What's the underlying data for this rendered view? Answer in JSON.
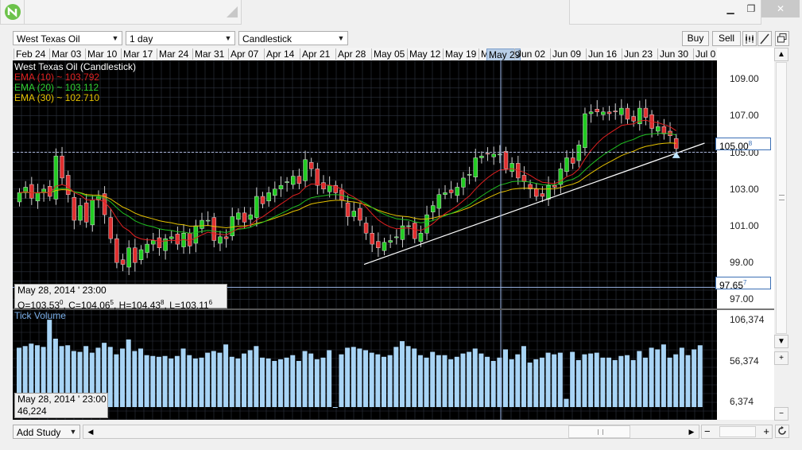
{
  "toolbar": {
    "symbol": "West Texas Oil",
    "interval": "1 day",
    "chart_type": "Candlestick",
    "buy_label": "Buy",
    "sell_label": "Sell"
  },
  "window": {
    "minimize": "▁",
    "restore": "❐",
    "close": "✕"
  },
  "x_axis_labels": [
    "Feb 24",
    "Mar 03",
    "Mar 10",
    "Mar 17",
    "Mar 24",
    "Mar 31",
    "Apr 07",
    "Apr 14",
    "Apr 21",
    "Apr 28",
    "May 05",
    "May 12",
    "May 19",
    "M",
    "May 29",
    "Jun 02",
    "Jun 09",
    "Jun 16",
    "Jun 23",
    "Jun 30",
    "Jul 0"
  ],
  "crosshair_label": "May 29",
  "legend": {
    "title": "West Texas Oil (Candlestick)",
    "ema10": "EMA (10) ~ 103.792",
    "ema20": "EMA (20) ~ 103.112",
    "ema30": "EMA (30) ~ 102.710",
    "ema10_color": "#e02020",
    "ema20_color": "#20c020",
    "ema30_color": "#e6c200"
  },
  "price_axis": {
    "ticks": [
      "109.00",
      "107.00",
      "105.00",
      "103.00",
      "101.00",
      "99.00",
      "97.00"
    ],
    "current_tag": "105.00",
    "current_tag_sup": "8",
    "cursor_tag": "97.65",
    "cursor_tag_sup": "7"
  },
  "info_price": {
    "date": "May 28, 2014 ' 23:00",
    "o_label": "O=",
    "o": "103.53",
    "o_sup": "0",
    "c_label": ", C=",
    "c": "104.06",
    "c_sup": "5",
    "h_label": ", H=",
    "h": "104.43",
    "h_sup": "8",
    "l_label": ", L=",
    "l": "103.11",
    "l_sup": "6"
  },
  "volume_panel": {
    "title": "Tick Volume",
    "ticks": [
      "106,374",
      "56,374",
      "6,374"
    ],
    "info_date": "May 28, 2014 ' 23:00",
    "info_value": "46,224"
  },
  "bottom": {
    "add_study": "Add Study"
  },
  "colors": {
    "up": "#22cc22",
    "down": "#e03030",
    "volume": "#a8d4f5",
    "trendline": "#ffffff",
    "grid": "#2e3440"
  },
  "chart_data": [
    {
      "type": "candlestick",
      "title": "West Texas Oil (Candlestick)",
      "ylim": [
        96.5,
        110.0
      ],
      "categories": [
        "Feb 24",
        "Mar 03",
        "Mar 10",
        "Mar 17",
        "Mar 24",
        "Mar 31",
        "Apr 07",
        "Apr 14",
        "Apr 21",
        "Apr 28",
        "May 05",
        "May 12",
        "May 19",
        "May 29",
        "Jun 02",
        "Jun 09",
        "Jun 16",
        "Jun 23",
        "Jun 30",
        "Jul 0"
      ],
      "series": [
        {
          "name": "EMA (10)",
          "last": 103.792
        },
        {
          "name": "EMA (20)",
          "last": 103.112
        },
        {
          "name": "EMA (30)",
          "last": 102.71
        }
      ],
      "closes": [
        102.8,
        103.1,
        102.5,
        102.8,
        103.0,
        102.6,
        104.8,
        103.6,
        102.7,
        101.3,
        102.1,
        101.2,
        102.4,
        102.6,
        101.6,
        100.3,
        99.0,
        98.9,
        99.8,
        99.0,
        99.7,
        100.0,
        100.2,
        99.8,
        100.3,
        100.4,
        100.0,
        100.6,
        99.9,
        101.0,
        101.3,
        101.3,
        100.2,
        100.4,
        100.3,
        101.5,
        101.7,
        101.2,
        101.6,
        102.6,
        102.2,
        102.8,
        103.0,
        103.2,
        103.4,
        103.7,
        103.3,
        104.6,
        104.1,
        103.2,
        103.0,
        103.2,
        102.8,
        102.4,
        101.5,
        101.8,
        101.3,
        100.6,
        100.0,
        99.8,
        100.1,
        100.2,
        100.4,
        101.0,
        101.0,
        100.3,
        100.6,
        101.6,
        102.1,
        102.7,
        102.8,
        102.8,
        103.1,
        103.6,
        103.8,
        104.7,
        104.8,
        104.9,
        104.9,
        104.9,
        104.1,
        104.4,
        103.6,
        103.4,
        103.0,
        102.6,
        102.6,
        103.2,
        103.1,
        104.1,
        104.7,
        104.4,
        105.4,
        107.1,
        107.2,
        107.2,
        107.2,
        107.1,
        107.2,
        107.4,
        106.8,
        106.7,
        107.4,
        106.9,
        106.3,
        106.4,
        106.0,
        105.9,
        105.2
      ]
    },
    {
      "type": "bar",
      "title": "Tick Volume",
      "ylim": [
        0,
        110000
      ],
      "series": [
        {
          "name": "Tick Volume",
          "last": 46224
        }
      ],
      "values": [
        72,
        74,
        77,
        75,
        73,
        106,
        83,
        74,
        75,
        68,
        67,
        74,
        66,
        72,
        78,
        73,
        64,
        71,
        82,
        68,
        71,
        63,
        62,
        61,
        62,
        59,
        62,
        71,
        63,
        59,
        60,
        66,
        68,
        66,
        76,
        61,
        59,
        65,
        69,
        74,
        60,
        59,
        56,
        58,
        60,
        63,
        56,
        68,
        65,
        58,
        60,
        69,
        0,
        64,
        72,
        73,
        71,
        69,
        66,
        64,
        61,
        63,
        73,
        80,
        74,
        71,
        63,
        60,
        67,
        63,
        63,
        58,
        61,
        65,
        67,
        71,
        65,
        61,
        56,
        60,
        70,
        58,
        64,
        74,
        54,
        58,
        60,
        66,
        64,
        66,
        10,
        67,
        57,
        64,
        65,
        66,
        60,
        60,
        57,
        62,
        63,
        57,
        68,
        60,
        72,
        70,
        76,
        60,
        64,
        72,
        63,
        70,
        75
      ]
    }
  ]
}
